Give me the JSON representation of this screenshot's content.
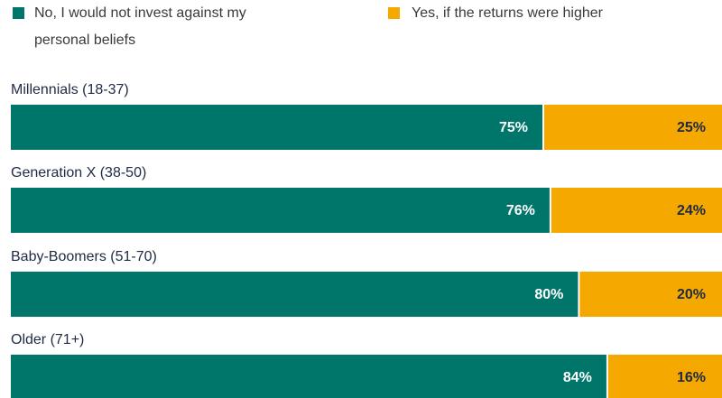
{
  "chart_data": {
    "type": "stacked-bar-horizontal",
    "categories": [
      "Millennials (18-37)",
      "Generation X (38-50)",
      "Baby-Boomers (51-70)",
      "Older (71+)"
    ],
    "xlim": [
      0,
      100
    ],
    "series": [
      {
        "name": "No, I would not invest against my personal beliefs",
        "color": "#00756a",
        "values": [
          75,
          76,
          80,
          84
        ],
        "value_labels": [
          "75%",
          "76%",
          "80%",
          "84%"
        ]
      },
      {
        "name": "Yes, if the returns were higher",
        "color": "#f5a800",
        "values": [
          25,
          24,
          20,
          16
        ],
        "value_labels": [
          "25%",
          "24%",
          "20%",
          "16%"
        ]
      }
    ]
  }
}
